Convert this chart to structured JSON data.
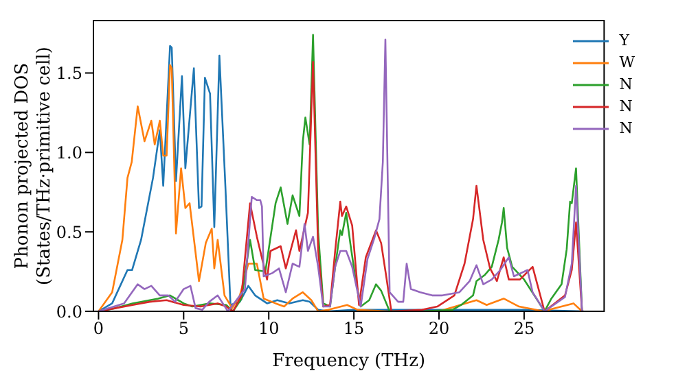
{
  "chart_data": {
    "type": "line",
    "xlabel": "Frequency (THz)",
    "ylabel": "Phonon projected DOS\n(States/THz·primitive cell)",
    "xlim": [
      -0.3,
      29.7
    ],
    "ylim": [
      0,
      1.83
    ],
    "xticks": [
      0,
      5,
      10,
      15,
      20,
      25
    ],
    "yticks": [
      {
        "value": 0,
        "label": "0.0"
      },
      0.5,
      {
        "value": 1,
        "label": "1.0"
      },
      1.5
    ],
    "grid": false,
    "legend": "top right",
    "marker": "none",
    "line_style": "solid",
    "series": [
      {
        "name": "Y",
        "color": "#1f77b4",
        "x": [
          0,
          0.8,
          1.7,
          1.97,
          2.5,
          3.2,
          3.6,
          3.8,
          4.2,
          4.3,
          4.55,
          4.9,
          5.1,
          5.6,
          5.9,
          6.05,
          6.25,
          6.55,
          6.8,
          7.1,
          7.45,
          7.75,
          8.3,
          8.8,
          9.2,
          9.9,
          10.5,
          11.2,
          12.0,
          12.4,
          12.9,
          13.5,
          15,
          20,
          25,
          28.5
        ],
        "values": [
          0,
          0.05,
          0.26,
          0.26,
          0.45,
          0.84,
          1.14,
          0.79,
          1.67,
          1.66,
          0.82,
          1.48,
          0.9,
          1.53,
          0.65,
          0.66,
          1.47,
          1.37,
          0.53,
          1.61,
          0.79,
          0.04,
          0.06,
          0.16,
          0.1,
          0.05,
          0.07,
          0.05,
          0.07,
          0.06,
          0.01,
          0,
          0.01,
          0.01,
          0.01,
          0
        ]
      },
      {
        "name": "W",
        "color": "#ff7f0e",
        "x": [
          0,
          0.8,
          1.4,
          1.7,
          1.95,
          2.3,
          2.7,
          3.1,
          3.3,
          3.6,
          3.8,
          4.0,
          4.2,
          4.3,
          4.55,
          4.85,
          5.1,
          5.35,
          5.9,
          6.3,
          6.65,
          6.8,
          7.0,
          7.4,
          7.85,
          8.3,
          8.8,
          9.3,
          9.7,
          10.4,
          10.9,
          11.4,
          12.0,
          12.5,
          12.9,
          13.5,
          14.6,
          15.2,
          17,
          20,
          22.2,
          22.8,
          23.8,
          24.7,
          25.7,
          26.1,
          27.9,
          28.4
        ],
        "values": [
          0,
          0.12,
          0.45,
          0.84,
          0.94,
          1.29,
          1.07,
          1.2,
          1.05,
          1.2,
          0.98,
          0.98,
          1.55,
          1.53,
          0.49,
          0.9,
          0.65,
          0.68,
          0.19,
          0.43,
          0.52,
          0.27,
          0.45,
          0.1,
          0.02,
          0.1,
          0.3,
          0.3,
          0.08,
          0.05,
          0.03,
          0.08,
          0.12,
          0.07,
          0,
          0.01,
          0.04,
          0.01,
          0,
          0,
          0.07,
          0.04,
          0.08,
          0.03,
          0.01,
          0,
          0.05,
          0
        ]
      },
      {
        "name": "N",
        "color": "#2ca02c",
        "x": [
          0,
          1,
          2,
          3.5,
          4.2,
          5,
          5.5,
          6.5,
          7.5,
          7.9,
          8.4,
          8.9,
          9.2,
          9.8,
          10.4,
          10.7,
          11.1,
          11.4,
          11.8,
          12.0,
          12.15,
          12.4,
          12.6,
          12.9,
          13.2,
          13.6,
          13.9,
          14.2,
          14.3,
          14.55,
          14.8,
          15.1,
          15.4,
          15.9,
          16.3,
          16.6,
          17.1,
          19,
          20.8,
          21.3,
          22.0,
          22.2,
          22.7,
          23.1,
          23.5,
          23.7,
          23.8,
          24.0,
          24.3,
          25.0,
          25.6,
          26.2,
          26.6,
          27.2,
          27.5,
          27.7,
          27.8,
          28.05,
          28.4
        ],
        "values": [
          0,
          0.02,
          0.05,
          0.08,
          0.1,
          0.05,
          0.03,
          0.05,
          0.04,
          0,
          0.08,
          0.45,
          0.26,
          0.25,
          0.68,
          0.78,
          0.55,
          0.73,
          0.6,
          1.07,
          1.22,
          1.05,
          1.74,
          0.5,
          0.05,
          0.03,
          0.28,
          0.51,
          0.48,
          0.62,
          0.42,
          0.2,
          0.03,
          0.07,
          0.17,
          0.13,
          0,
          0,
          0.01,
          0.04,
          0.1,
          0.19,
          0.23,
          0.28,
          0.45,
          0.56,
          0.65,
          0.4,
          0.28,
          0.2,
          0.1,
          0,
          0.08,
          0.17,
          0.39,
          0.69,
          0.68,
          0.9,
          0
        ]
      },
      {
        "name": "N",
        "color": "#d62728",
        "x": [
          0,
          1,
          2,
          3,
          4,
          5,
          6,
          7,
          7.5,
          7.9,
          8.4,
          8.9,
          9.3,
          9.9,
          10.1,
          10.7,
          11.0,
          11.6,
          11.8,
          12.3,
          12.6,
          12.9,
          13.2,
          13.6,
          13.9,
          14.2,
          14.3,
          14.55,
          14.9,
          15.3,
          15.7,
          16.3,
          16.6,
          16.9,
          17.2,
          19,
          19.9,
          20.9,
          21.5,
          22.0,
          22.2,
          22.6,
          23.0,
          23.4,
          23.8,
          24.1,
          24.75,
          25.5,
          26.2,
          27.4,
          27.8,
          28.05,
          28.4
        ],
        "values": [
          0,
          0.02,
          0.04,
          0.06,
          0.07,
          0.04,
          0.03,
          0.05,
          0.03,
          0,
          0.1,
          0.68,
          0.47,
          0.2,
          0.38,
          0.41,
          0.27,
          0.51,
          0.38,
          0.62,
          1.57,
          0.38,
          0.03,
          0.04,
          0.38,
          0.69,
          0.6,
          0.66,
          0.54,
          0.04,
          0.34,
          0.51,
          0.43,
          0.22,
          0,
          0.01,
          0.03,
          0.1,
          0.3,
          0.58,
          0.79,
          0.45,
          0.27,
          0.19,
          0.34,
          0.2,
          0.2,
          0.28,
          0,
          0.1,
          0.26,
          0.56,
          0
        ]
      },
      {
        "name": "N",
        "color": "#9467bd",
        "x": [
          0,
          1.5,
          2.3,
          2.7,
          3.1,
          3.6,
          4.1,
          4.5,
          5.0,
          5.4,
          5.7,
          6.1,
          6.5,
          7.0,
          7.6,
          8.6,
          9.0,
          9.3,
          9.5,
          9.6,
          9.7,
          10.2,
          10.6,
          11.0,
          11.4,
          11.8,
          12.1,
          12.3,
          12.6,
          12.9,
          13.2,
          13.6,
          13.9,
          14.2,
          14.55,
          14.9,
          15.4,
          15.8,
          16.2,
          16.5,
          16.7,
          16.85,
          17.1,
          17.6,
          17.9,
          18.1,
          18.35,
          18.9,
          19.6,
          20.2,
          21.2,
          21.8,
          22.2,
          22.6,
          23.1,
          23.6,
          24.1,
          24.4,
          25.2,
          25.5,
          26.2,
          27.4,
          27.8,
          28.05,
          28.4
        ],
        "values": [
          0,
          0.05,
          0.17,
          0.14,
          0.16,
          0.1,
          0.1,
          0.06,
          0.14,
          0.16,
          0.02,
          0.01,
          0.06,
          0.1,
          0,
          0.14,
          0.72,
          0.7,
          0.7,
          0.66,
          0.22,
          0.24,
          0.27,
          0.12,
          0.3,
          0.28,
          0.55,
          0.38,
          0.47,
          0.28,
          0.03,
          0.03,
          0.28,
          0.38,
          0.38,
          0.28,
          0.03,
          0.33,
          0.46,
          0.58,
          0.94,
          1.71,
          0.12,
          0.06,
          0.06,
          0.3,
          0.14,
          0.12,
          0.1,
          0.1,
          0.12,
          0.19,
          0.29,
          0.17,
          0.2,
          0.26,
          0.34,
          0.22,
          0.26,
          0.12,
          0,
          0.09,
          0.3,
          0.79,
          0
        ]
      }
    ]
  }
}
